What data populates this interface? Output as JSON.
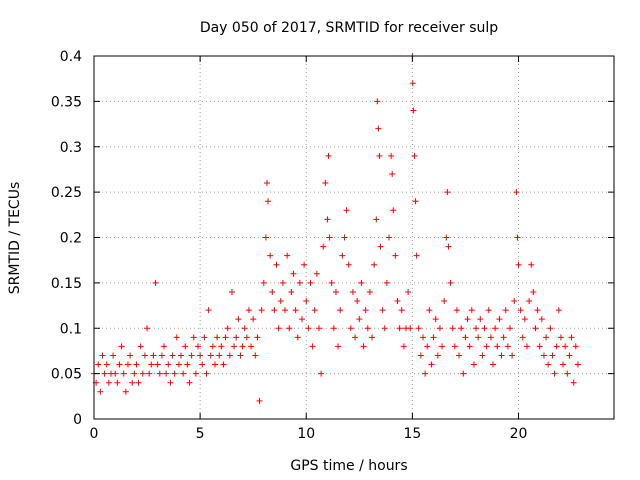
{
  "chart_data": {
    "type": "scatter",
    "title": "Day 050 of 2017, SRMTID for receiver sulp",
    "xlabel": "GPS time / hours",
    "ylabel": "SRMTID / TECUs",
    "xlim": [
      0,
      24.5
    ],
    "ylim": [
      0,
      0.4
    ],
    "xticks": [
      0,
      5,
      10,
      15,
      20
    ],
    "xtick_labels": [
      "0",
      "5",
      "10",
      "15",
      "20"
    ],
    "yticks": [
      0,
      0.05,
      0.1,
      0.15,
      0.2,
      0.25,
      0.3,
      0.35,
      0.4
    ],
    "ytick_labels": [
      "0",
      "0.05",
      "0.1",
      "0.15",
      "0.2",
      "0.25",
      "0.3",
      "0.35",
      "0.4"
    ],
    "grid": true,
    "marker": "plus",
    "color": "#ff0000",
    "series": [
      {
        "name": "SRMTID",
        "points": [
          [
            0.0,
            0.05
          ],
          [
            0.1,
            0.04
          ],
          [
            0.2,
            0.06
          ],
          [
            0.3,
            0.03
          ],
          [
            0.4,
            0.07
          ],
          [
            0.5,
            0.05
          ],
          [
            0.6,
            0.06
          ],
          [
            0.7,
            0.04
          ],
          [
            0.8,
            0.05
          ],
          [
            0.9,
            0.07
          ],
          [
            1.0,
            0.05
          ],
          [
            1.1,
            0.04
          ],
          [
            1.2,
            0.06
          ],
          [
            1.3,
            0.08
          ],
          [
            1.4,
            0.05
          ],
          [
            1.5,
            0.03
          ],
          [
            1.6,
            0.06
          ],
          [
            1.7,
            0.07
          ],
          [
            1.8,
            0.04
          ],
          [
            1.9,
            0.05
          ],
          [
            2.0,
            0.06
          ],
          [
            2.1,
            0.04
          ],
          [
            2.2,
            0.08
          ],
          [
            2.3,
            0.05
          ],
          [
            2.4,
            0.07
          ],
          [
            2.5,
            0.1
          ],
          [
            2.6,
            0.05
          ],
          [
            2.7,
            0.06
          ],
          [
            2.8,
            0.07
          ],
          [
            2.9,
            0.15
          ],
          [
            3.0,
            0.06
          ],
          [
            3.1,
            0.05
          ],
          [
            3.2,
            0.07
          ],
          [
            3.3,
            0.08
          ],
          [
            3.4,
            0.05
          ],
          [
            3.5,
            0.06
          ],
          [
            3.6,
            0.04
          ],
          [
            3.7,
            0.07
          ],
          [
            3.8,
            0.05
          ],
          [
            3.9,
            0.09
          ],
          [
            4.0,
            0.06
          ],
          [
            4.1,
            0.07
          ],
          [
            4.2,
            0.05
          ],
          [
            4.3,
            0.08
          ],
          [
            4.4,
            0.06
          ],
          [
            4.5,
            0.04
          ],
          [
            4.6,
            0.07
          ],
          [
            4.7,
            0.09
          ],
          [
            4.8,
            0.05
          ],
          [
            4.9,
            0.08
          ],
          [
            5.0,
            0.07
          ],
          [
            5.1,
            0.06
          ],
          [
            5.2,
            0.09
          ],
          [
            5.3,
            0.05
          ],
          [
            5.4,
            0.12
          ],
          [
            5.5,
            0.07
          ],
          [
            5.6,
            0.08
          ],
          [
            5.7,
            0.06
          ],
          [
            5.8,
            0.09
          ],
          [
            5.9,
            0.07
          ],
          [
            6.0,
            0.08
          ],
          [
            6.1,
            0.06
          ],
          [
            6.2,
            0.09
          ],
          [
            6.3,
            0.1
          ],
          [
            6.4,
            0.07
          ],
          [
            6.5,
            0.14
          ],
          [
            6.6,
            0.08
          ],
          [
            6.7,
            0.09
          ],
          [
            6.8,
            0.11
          ],
          [
            6.9,
            0.07
          ],
          [
            7.0,
            0.08
          ],
          [
            7.1,
            0.1
          ],
          [
            7.2,
            0.09
          ],
          [
            7.3,
            0.12
          ],
          [
            7.4,
            0.08
          ],
          [
            7.5,
            0.11
          ],
          [
            7.6,
            0.07
          ],
          [
            7.7,
            0.09
          ],
          [
            7.8,
            0.02
          ],
          [
            7.9,
            0.12
          ],
          [
            8.0,
            0.15
          ],
          [
            8.1,
            0.2
          ],
          [
            8.15,
            0.26
          ],
          [
            8.2,
            0.24
          ],
          [
            8.3,
            0.18
          ],
          [
            8.4,
            0.14
          ],
          [
            8.5,
            0.12
          ],
          [
            8.6,
            0.17
          ],
          [
            8.7,
            0.1
          ],
          [
            8.8,
            0.13
          ],
          [
            8.9,
            0.15
          ],
          [
            9.0,
            0.12
          ],
          [
            9.1,
            0.18
          ],
          [
            9.2,
            0.1
          ],
          [
            9.3,
            0.14
          ],
          [
            9.4,
            0.16
          ],
          [
            9.5,
            0.12
          ],
          [
            9.6,
            0.09
          ],
          [
            9.7,
            0.15
          ],
          [
            9.8,
            0.11
          ],
          [
            9.9,
            0.17
          ],
          [
            10.0,
            0.13
          ],
          [
            10.1,
            0.1
          ],
          [
            10.2,
            0.15
          ],
          [
            10.3,
            0.08
          ],
          [
            10.4,
            0.12
          ],
          [
            10.5,
            0.16
          ],
          [
            10.6,
            0.1
          ],
          [
            10.7,
            0.05
          ],
          [
            10.8,
            0.19
          ],
          [
            10.9,
            0.26
          ],
          [
            11.0,
            0.22
          ],
          [
            11.05,
            0.29
          ],
          [
            11.1,
            0.2
          ],
          [
            11.2,
            0.15
          ],
          [
            11.3,
            0.1
          ],
          [
            11.4,
            0.14
          ],
          [
            11.5,
            0.08
          ],
          [
            11.6,
            0.12
          ],
          [
            11.7,
            0.18
          ],
          [
            11.8,
            0.2
          ],
          [
            11.9,
            0.23
          ],
          [
            12.0,
            0.17
          ],
          [
            12.1,
            0.1
          ],
          [
            12.2,
            0.14
          ],
          [
            12.3,
            0.09
          ],
          [
            12.4,
            0.13
          ],
          [
            12.5,
            0.11
          ],
          [
            12.6,
            0.15
          ],
          [
            12.7,
            0.08
          ],
          [
            12.8,
            0.12
          ],
          [
            12.9,
            0.1
          ],
          [
            13.0,
            0.14
          ],
          [
            13.1,
            0.09
          ],
          [
            13.2,
            0.17
          ],
          [
            13.3,
            0.22
          ],
          [
            13.35,
            0.35
          ],
          [
            13.4,
            0.32
          ],
          [
            13.45,
            0.29
          ],
          [
            13.5,
            0.19
          ],
          [
            13.6,
            0.12
          ],
          [
            13.7,
            0.1
          ],
          [
            13.8,
            0.15
          ],
          [
            13.9,
            0.2
          ],
          [
            14.0,
            0.29
          ],
          [
            14.05,
            0.27
          ],
          [
            14.1,
            0.23
          ],
          [
            14.2,
            0.18
          ],
          [
            14.3,
            0.13
          ],
          [
            14.4,
            0.1
          ],
          [
            14.5,
            0.12
          ],
          [
            14.6,
            0.08
          ],
          [
            14.7,
            0.1
          ],
          [
            14.8,
            0.14
          ],
          [
            14.9,
            0.1
          ],
          [
            15.0,
            0.4
          ],
          [
            15.02,
            0.37
          ],
          [
            15.05,
            0.34
          ],
          [
            15.1,
            0.29
          ],
          [
            15.15,
            0.24
          ],
          [
            15.2,
            0.18
          ],
          [
            15.3,
            0.1
          ],
          [
            15.4,
            0.07
          ],
          [
            15.5,
            0.09
          ],
          [
            15.6,
            0.05
          ],
          [
            15.7,
            0.08
          ],
          [
            15.8,
            0.12
          ],
          [
            15.9,
            0.06
          ],
          [
            16.0,
            0.09
          ],
          [
            16.1,
            0.11
          ],
          [
            16.2,
            0.07
          ],
          [
            16.3,
            0.1
          ],
          [
            16.4,
            0.08
          ],
          [
            16.5,
            0.13
          ],
          [
            16.6,
            0.2
          ],
          [
            16.65,
            0.25
          ],
          [
            16.7,
            0.19
          ],
          [
            16.8,
            0.15
          ],
          [
            16.9,
            0.1
          ],
          [
            17.0,
            0.08
          ],
          [
            17.1,
            0.12
          ],
          [
            17.2,
            0.07
          ],
          [
            17.3,
            0.1
          ],
          [
            17.4,
            0.05
          ],
          [
            17.5,
            0.09
          ],
          [
            17.6,
            0.11
          ],
          [
            17.7,
            0.08
          ],
          [
            17.8,
            0.12
          ],
          [
            17.9,
            0.06
          ],
          [
            18.0,
            0.1
          ],
          [
            18.1,
            0.09
          ],
          [
            18.2,
            0.11
          ],
          [
            18.3,
            0.07
          ],
          [
            18.4,
            0.1
          ],
          [
            18.5,
            0.08
          ],
          [
            18.6,
            0.12
          ],
          [
            18.7,
            0.09
          ],
          [
            18.8,
            0.06
          ],
          [
            18.9,
            0.1
          ],
          [
            19.0,
            0.08
          ],
          [
            19.1,
            0.11
          ],
          [
            19.2,
            0.07
          ],
          [
            19.3,
            0.09
          ],
          [
            19.4,
            0.12
          ],
          [
            19.5,
            0.08
          ],
          [
            19.6,
            0.1
          ],
          [
            19.7,
            0.07
          ],
          [
            19.8,
            0.13
          ],
          [
            19.9,
            0.25
          ],
          [
            19.95,
            0.2
          ],
          [
            20.0,
            0.17
          ],
          [
            20.1,
            0.12
          ],
          [
            20.2,
            0.09
          ],
          [
            20.3,
            0.11
          ],
          [
            20.4,
            0.08
          ],
          [
            20.5,
            0.13
          ],
          [
            20.6,
            0.17
          ],
          [
            20.7,
            0.14
          ],
          [
            20.8,
            0.1
          ],
          [
            20.9,
            0.12
          ],
          [
            21.0,
            0.08
          ],
          [
            21.1,
            0.11
          ],
          [
            21.2,
            0.07
          ],
          [
            21.3,
            0.09
          ],
          [
            21.4,
            0.06
          ],
          [
            21.5,
            0.1
          ],
          [
            21.6,
            0.07
          ],
          [
            21.7,
            0.05
          ],
          [
            21.8,
            0.08
          ],
          [
            21.9,
            0.12
          ],
          [
            22.0,
            0.09
          ],
          [
            22.1,
            0.06
          ],
          [
            22.2,
            0.08
          ],
          [
            22.3,
            0.05
          ],
          [
            22.4,
            0.07
          ],
          [
            22.5,
            0.09
          ],
          [
            22.6,
            0.04
          ],
          [
            22.7,
            0.08
          ],
          [
            22.8,
            0.06
          ]
        ]
      }
    ]
  }
}
